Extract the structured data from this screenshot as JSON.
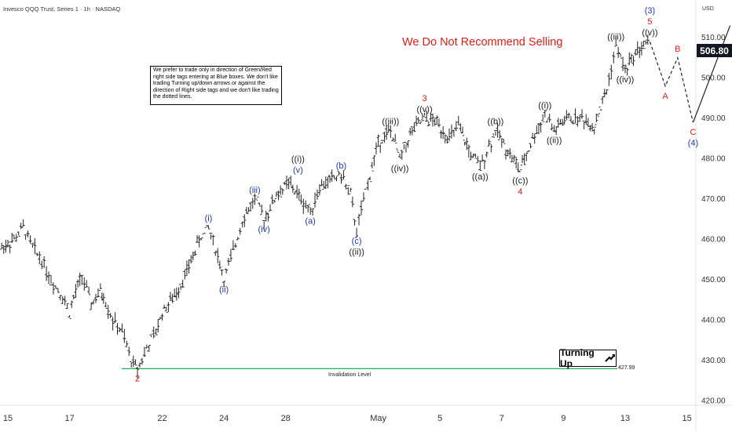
{
  "header": {
    "title": "Invesco QQQ Trust, Series 1 · 1h · NASDAQ",
    "currency": "USD",
    "headline": "We Do Not Recommend Selling"
  },
  "note": {
    "text": "We prefer to trade only in direction of Green/Red right side tags entering at Blue boxes. We don't like trading Turning up/down arrows or against the direction of Right side tags and we don't like trading the dotted lines."
  },
  "turning_up": {
    "label": "Turning Up",
    "icon": "arrow-up-right-icon"
  },
  "invalidation": {
    "label": "Invalidation Level",
    "value": "427.99",
    "color": "#22b04a"
  },
  "last_price": "506.80",
  "colors": {
    "blue": "#1e3aa8",
    "red": "#d6211a",
    "black": "#1a1a1a",
    "green": "#22b04a",
    "axis": "#e0e3eb"
  },
  "chart_data": {
    "type": "line",
    "y_ticks": [
      "510.00",
      "500.00",
      "490.00",
      "480.00",
      "470.00",
      "460.00",
      "450.00",
      "440.00",
      "430.00",
      "420.00"
    ],
    "ylim": [
      418,
      517
    ],
    "x_ticks": [
      {
        "label": "15",
        "t": 0
      },
      {
        "label": "17",
        "t": 2
      },
      {
        "label": "22",
        "t": 5
      },
      {
        "label": "24",
        "t": 7
      },
      {
        "label": "28",
        "t": 9
      },
      {
        "label": "May",
        "t": 12
      },
      {
        "label": "5",
        "t": 14
      },
      {
        "label": "7",
        "t": 16
      },
      {
        "label": "9",
        "t": 18
      },
      {
        "label": "13",
        "t": 20
      },
      {
        "label": "15",
        "t": 22
      }
    ],
    "price_path": [
      [
        -0.2,
        458
      ],
      [
        0.2,
        460
      ],
      [
        0.5,
        463
      ],
      [
        0.8,
        458
      ],
      [
        1.1,
        455
      ],
      [
        1.4,
        450
      ],
      [
        1.7,
        447
      ],
      [
        2.0,
        442
      ],
      [
        2.2,
        447
      ],
      [
        2.4,
        451
      ],
      [
        2.7,
        444
      ],
      [
        3.0,
        447
      ],
      [
        3.1,
        446
      ],
      [
        3.4,
        440
      ],
      [
        3.7,
        437
      ],
      [
        4.0,
        430
      ],
      [
        4.2,
        428
      ],
      [
        4.5,
        433
      ],
      [
        4.8,
        437
      ],
      [
        5.0,
        442
      ],
      [
        5.4,
        446
      ],
      [
        5.8,
        452
      ],
      [
        6.2,
        460
      ],
      [
        6.5,
        463
      ],
      [
        6.8,
        456
      ],
      [
        7.0,
        450
      ],
      [
        7.3,
        457
      ],
      [
        7.6,
        465
      ],
      [
        8.0,
        470
      ],
      [
        8.3,
        465
      ],
      [
        8.7,
        471
      ],
      [
        9.1,
        474
      ],
      [
        9.5,
        470
      ],
      [
        9.8,
        467
      ],
      [
        10.1,
        473
      ],
      [
        10.5,
        475
      ],
      [
        10.8,
        476
      ],
      [
        11.1,
        471
      ],
      [
        11.3,
        462
      ],
      [
        11.6,
        472
      ],
      [
        12.0,
        484
      ],
      [
        12.4,
        487
      ],
      [
        12.7,
        480
      ],
      [
        13.1,
        487
      ],
      [
        13.5,
        490
      ],
      [
        13.9,
        489
      ],
      [
        14.3,
        485
      ],
      [
        14.6,
        488
      ],
      [
        15.0,
        481
      ],
      [
        15.3,
        478
      ],
      [
        15.8,
        487
      ],
      [
        16.2,
        482
      ],
      [
        16.6,
        477
      ],
      [
        17.0,
        485
      ],
      [
        17.4,
        491
      ],
      [
        17.7,
        487
      ],
      [
        18.1,
        490
      ],
      [
        18.6,
        490
      ],
      [
        19.0,
        488
      ],
      [
        19.4,
        497
      ],
      [
        19.7,
        508
      ],
      [
        20.0,
        502
      ],
      [
        20.4,
        507
      ],
      [
        20.8,
        509
      ]
    ],
    "projection": {
      "dashed": [
        [
          20.8,
          509
        ],
        [
          21.3,
          498
        ],
        [
          21.7,
          505
        ],
        [
          22.2,
          489
        ]
      ],
      "solid": [
        [
          22.2,
          489
        ],
        [
          23.4,
          513
        ]
      ]
    },
    "labels": [
      {
        "text": "2",
        "t": 4.2,
        "y": 428,
        "color": "red",
        "pos": "below"
      },
      {
        "text": "(i)",
        "t": 6.5,
        "y": 463,
        "color": "blue",
        "pos": "above"
      },
      {
        "text": "(ii)",
        "t": 7.0,
        "y": 450,
        "color": "blue",
        "pos": "below"
      },
      {
        "text": "(iii)",
        "t": 8.0,
        "y": 470,
        "color": "blue",
        "pos": "above"
      },
      {
        "text": "(iv)",
        "t": 8.3,
        "y": 465,
        "color": "blue",
        "pos": "below"
      },
      {
        "text": "(v)",
        "t": 9.4,
        "y": 475,
        "color": "blue",
        "pos": "above"
      },
      {
        "text": "((i))",
        "t": 9.4,
        "y": 475,
        "color": "black",
        "pos": "above2"
      },
      {
        "text": "(a)",
        "t": 9.8,
        "y": 467,
        "color": "blue",
        "pos": "below"
      },
      {
        "text": "(b)",
        "t": 10.8,
        "y": 476,
        "color": "blue",
        "pos": "above"
      },
      {
        "text": "(c)",
        "t": 11.3,
        "y": 462,
        "color": "blue",
        "pos": "below"
      },
      {
        "text": "((ii))",
        "t": 11.3,
        "y": 462,
        "color": "black",
        "pos": "below2"
      },
      {
        "text": "((iii))",
        "t": 12.4,
        "y": 487,
        "color": "black",
        "pos": "above"
      },
      {
        "text": "((iv))",
        "t": 12.7,
        "y": 480,
        "color": "black",
        "pos": "below"
      },
      {
        "text": "((v))",
        "t": 13.5,
        "y": 490,
        "color": "black",
        "pos": "above"
      },
      {
        "text": "3",
        "t": 13.5,
        "y": 490,
        "color": "red",
        "pos": "above2"
      },
      {
        "text": "((a))",
        "t": 15.3,
        "y": 478,
        "color": "black",
        "pos": "below"
      },
      {
        "text": "((b))",
        "t": 15.8,
        "y": 487,
        "color": "black",
        "pos": "above"
      },
      {
        "text": "((c))",
        "t": 16.6,
        "y": 477,
        "color": "black",
        "pos": "below"
      },
      {
        "text": "4",
        "t": 16.6,
        "y": 477,
        "color": "red",
        "pos": "below2"
      },
      {
        "text": "((i))",
        "t": 17.4,
        "y": 491,
        "color": "black",
        "pos": "above"
      },
      {
        "text": "((ii))",
        "t": 17.7,
        "y": 487,
        "color": "black",
        "pos": "below"
      },
      {
        "text": "((iii))",
        "t": 19.7,
        "y": 508,
        "color": "black",
        "pos": "above"
      },
      {
        "text": "((iv))",
        "t": 20.0,
        "y": 502,
        "color": "black",
        "pos": "below"
      },
      {
        "text": "((v))",
        "t": 20.8,
        "y": 509,
        "color": "black",
        "pos": "above"
      },
      {
        "text": "5",
        "t": 20.8,
        "y": 509,
        "color": "red",
        "pos": "above2"
      },
      {
        "text": "(3)",
        "t": 20.8,
        "y": 509,
        "color": "blue",
        "pos": "above3"
      },
      {
        "text": "A",
        "t": 21.3,
        "y": 498,
        "color": "red",
        "pos": "below"
      },
      {
        "text": "B",
        "t": 21.7,
        "y": 505,
        "color": "red",
        "pos": "above"
      },
      {
        "text": "C",
        "t": 22.2,
        "y": 489,
        "color": "red",
        "pos": "below"
      },
      {
        "text": "(4)",
        "t": 22.2,
        "y": 489,
        "color": "blue",
        "pos": "below2"
      }
    ]
  }
}
